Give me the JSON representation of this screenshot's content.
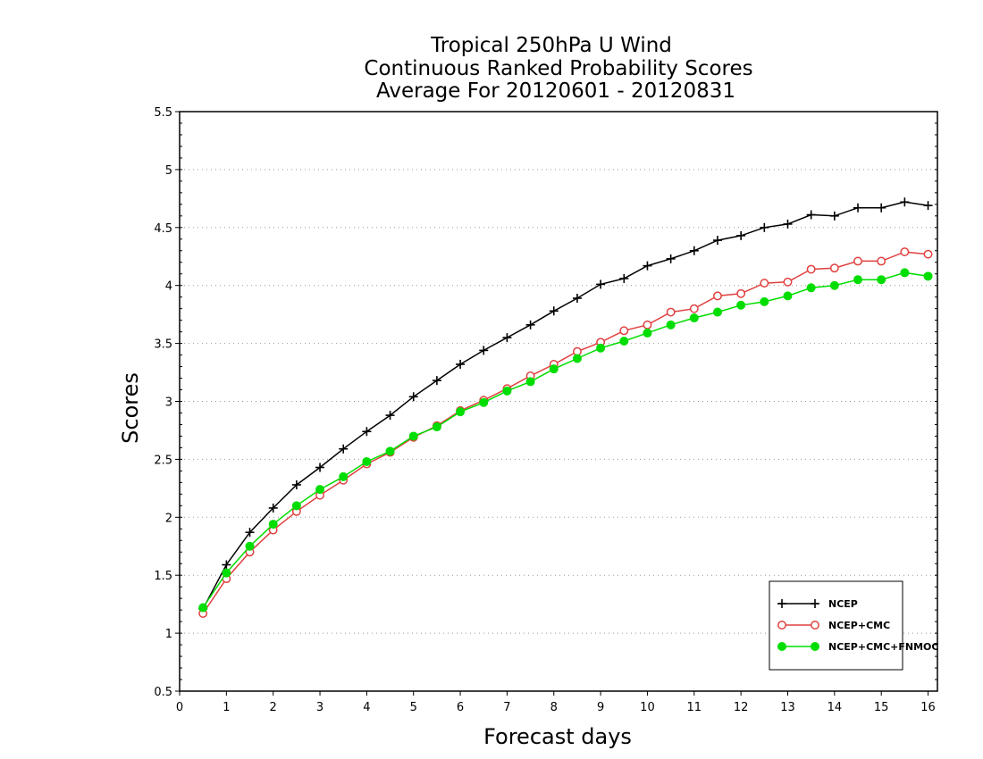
{
  "chart_data": {
    "type": "line",
    "title": [
      "Tropical 250hPa U Wind",
      "Continuous Ranked Probability Scores",
      "Average For 20120601 - 20120831"
    ],
    "xlabel": "Forecast days",
    "ylabel": "Scores",
    "xlim": [
      0,
      16.2
    ],
    "ylim": [
      0.5,
      5.5
    ],
    "xticks": [
      0,
      1,
      2,
      3,
      4,
      5,
      6,
      7,
      8,
      9,
      10,
      11,
      12,
      13,
      14,
      15,
      16
    ],
    "xtick_labels": [
      "0",
      "1",
      "2",
      "3",
      "4",
      "5",
      "6",
      "7",
      "8",
      "9",
      "10",
      "11",
      "12",
      "13",
      "14",
      "15",
      "16"
    ],
    "yticks": [
      0.5,
      1,
      1.5,
      2,
      2.5,
      3,
      3.5,
      4,
      4.5,
      5,
      5.5
    ],
    "ytick_labels": [
      "0.5",
      "1",
      "1.5",
      "2",
      "2.5",
      "3",
      "3.5",
      "4",
      "4.5",
      "5",
      "5.5"
    ],
    "grid": "horizontal dotted",
    "legend_position": "bottom-right",
    "x": [
      0.5,
      1,
      1.5,
      2,
      2.5,
      3,
      3.5,
      4,
      4.5,
      5,
      5.5,
      6,
      6.5,
      7,
      7.5,
      8,
      8.5,
      9,
      9.5,
      10,
      10.5,
      11,
      11.5,
      12,
      12.5,
      13,
      13.5,
      14,
      14.5,
      15,
      15.5,
      16
    ],
    "series": [
      {
        "name": "NCEP",
        "color": "#000000",
        "marker": "plus",
        "values": [
          1.21,
          1.59,
          1.87,
          2.08,
          2.28,
          2.43,
          2.59,
          2.74,
          2.88,
          3.04,
          3.18,
          3.32,
          3.44,
          3.55,
          3.66,
          3.78,
          3.89,
          4.01,
          4.06,
          4.17,
          4.23,
          4.3,
          4.39,
          4.43,
          4.5,
          4.53,
          4.61,
          4.6,
          4.67,
          4.67,
          4.72,
          4.69
        ]
      },
      {
        "name": "NCEP+CMC",
        "color": "#e04040",
        "marker": "open-circle",
        "values": [
          1.17,
          1.47,
          1.7,
          1.89,
          2.05,
          2.19,
          2.32,
          2.46,
          2.56,
          2.69,
          2.79,
          2.92,
          3.01,
          3.11,
          3.22,
          3.32,
          3.43,
          3.51,
          3.61,
          3.66,
          3.77,
          3.8,
          3.91,
          3.93,
          4.02,
          4.03,
          4.14,
          4.15,
          4.21,
          4.21,
          4.29,
          4.27
        ]
      },
      {
        "name": "NCEP+CMC+FNMOC",
        "color": "#00dd00",
        "marker": "filled-circle",
        "values": [
          1.22,
          1.52,
          1.75,
          1.94,
          2.1,
          2.24,
          2.35,
          2.48,
          2.57,
          2.7,
          2.78,
          2.91,
          2.99,
          3.09,
          3.17,
          3.28,
          3.37,
          3.46,
          3.52,
          3.59,
          3.66,
          3.72,
          3.77,
          3.83,
          3.86,
          3.91,
          3.98,
          4.0,
          4.05,
          4.05,
          4.11,
          4.08
        ]
      }
    ]
  }
}
